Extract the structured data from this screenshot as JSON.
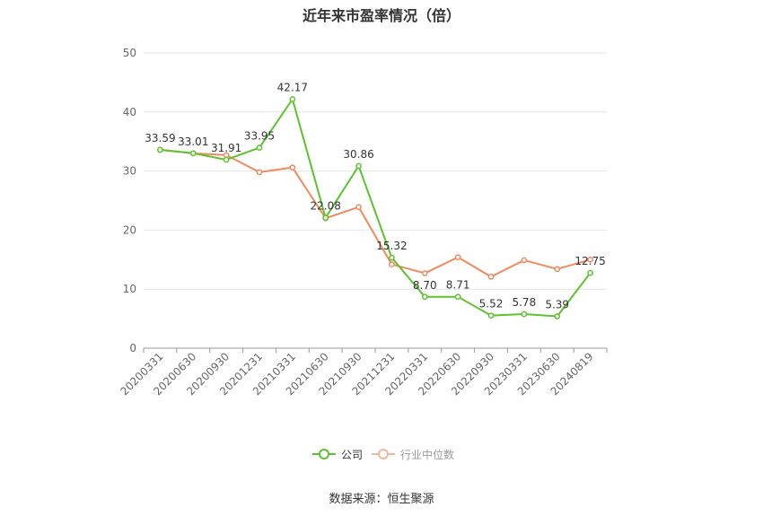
{
  "title": "近年来市盈率情况（倍）",
  "source": "数据来源：恒生聚源",
  "colors": {
    "company": "#5cc22f",
    "median": "#f08a5d",
    "grid": "#e6e6e6",
    "axis": "#999999",
    "text": "#333333"
  },
  "chart_data": {
    "type": "line",
    "title": "近年来市盈率情况（倍）",
    "xlabel": "",
    "ylabel": "",
    "ylim": [
      0,
      50
    ],
    "yticks": [
      0,
      10,
      20,
      30,
      40,
      50
    ],
    "grid": true,
    "legend_position": "bottom",
    "categories": [
      "20200331",
      "20200630",
      "20200930",
      "20201231",
      "20210331",
      "20210630",
      "20210930",
      "20211231",
      "20220331",
      "20220630",
      "20220930",
      "20230331",
      "20230630",
      "20240819"
    ],
    "series": [
      {
        "name": "公司",
        "color": "#5cc22f",
        "values": [
          33.59,
          33.01,
          31.91,
          33.95,
          42.17,
          22.08,
          30.86,
          15.32,
          8.7,
          8.71,
          5.52,
          5.78,
          5.39,
          12.75
        ],
        "labels": [
          "33.59",
          "33.01",
          "31.91",
          "33.95",
          "42.17",
          "22.08",
          "30.86",
          "15.32",
          "8.70",
          "8.71",
          "5.52",
          "5.78",
          "5.39",
          "12.75"
        ]
      },
      {
        "name": "行业中位数",
        "color": "#f08a5d",
        "values": [
          33.6,
          33.0,
          32.7,
          29.8,
          30.6,
          22.0,
          23.9,
          14.2,
          12.7,
          15.4,
          12.1,
          14.9,
          13.4,
          15.0
        ]
      }
    ]
  }
}
